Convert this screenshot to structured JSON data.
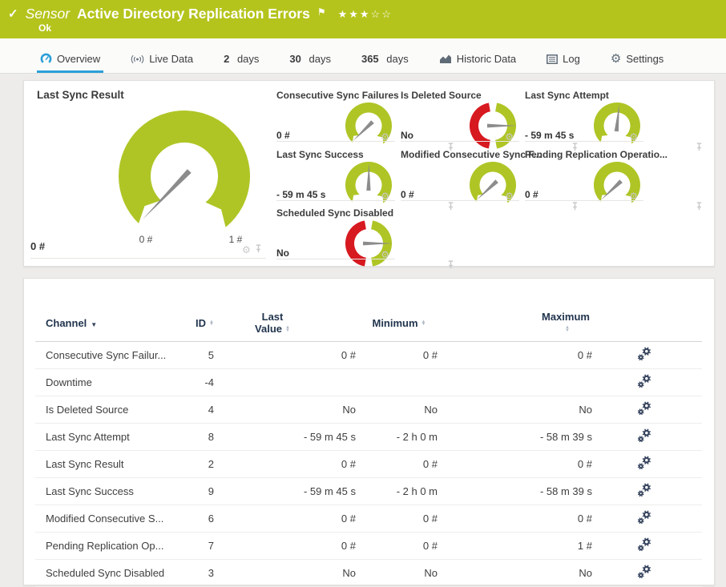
{
  "header": {
    "check_icon": "✓",
    "kind_label": "Sensor",
    "title": "Active Directory Replication Errors",
    "flag_icon": "⚑",
    "rating_filled": 3,
    "rating_total": 5,
    "status_text": "Ok",
    "bg_color": "#b5c41c"
  },
  "tabs": [
    {
      "label": "Overview",
      "icon": "gauge-icon",
      "active": true
    },
    {
      "label": "Live Data",
      "icon": "live-icon",
      "active": false
    },
    {
      "prefix": "2",
      "label": "days",
      "active": false
    },
    {
      "prefix": "30",
      "label": "days",
      "active": false
    },
    {
      "prefix": "365",
      "label": "days",
      "active": false
    },
    {
      "label": "Historic Data",
      "icon": "historic-icon",
      "active": false
    },
    {
      "label": "Log",
      "icon": "log-icon",
      "active": false
    },
    {
      "label": "Settings",
      "icon": "settings-icon",
      "active": false
    }
  ],
  "colors": {
    "green": "#afc525",
    "red": "#d71920",
    "blue": "#2b9fd8",
    "needle": "#8c8c8c",
    "row_gear": "#33415c"
  },
  "gauges": {
    "main": {
      "title": "Last Sync Result",
      "type": "arc",
      "value": "0 #",
      "min_label": "0 #",
      "max_label": "1 #",
      "needle_angle": 134
    },
    "small": [
      {
        "title": "Consecutive Sync Failures",
        "type": "arc",
        "value": "0 #",
        "needle_angle": 136,
        "col": 0,
        "row": 0
      },
      {
        "title": "Is Deleted Source",
        "type": "bool",
        "value": "No",
        "needle_angle": 0,
        "col": 1,
        "row": 0
      },
      {
        "title": "Last Sync Attempt",
        "type": "arc",
        "value": "- 59 m 45 s",
        "needle_angle": 276,
        "col": 2,
        "row": 0
      },
      {
        "title": "Last Sync Success",
        "type": "arc",
        "value": "- 59 m 45 s",
        "needle_angle": 271,
        "col": 0,
        "row": 1
      },
      {
        "title": "Modified Consecutive Sync F...",
        "type": "arc",
        "value": "0 #",
        "needle_angle": 137,
        "col": 1,
        "row": 1
      },
      {
        "title": "Pending Replication Operatio...",
        "type": "arc",
        "value": "0 #",
        "needle_angle": 137,
        "col": 2,
        "row": 1
      },
      {
        "title": "Scheduled Sync Disabled",
        "type": "bool",
        "value": "No",
        "needle_angle": 0,
        "col": 0,
        "row": 2
      }
    ]
  },
  "table": {
    "columns": [
      {
        "label": "Channel",
        "sort": "active"
      },
      {
        "label": "ID",
        "sort": "both"
      },
      {
        "label": "Last Value",
        "lines": [
          "Last",
          "Value"
        ],
        "sort": "both"
      },
      {
        "label": "Minimum",
        "sort": "both"
      },
      {
        "label": "Maximum",
        "sort": "both"
      },
      {
        "label": "",
        "sort": "none"
      }
    ],
    "rows": [
      {
        "channel": "Consecutive Sync Failur...",
        "id": "5",
        "last": "0 #",
        "min": "0 #",
        "max": "0 #"
      },
      {
        "channel": "Downtime",
        "id": "-4",
        "last": "",
        "min": "",
        "max": ""
      },
      {
        "channel": "Is Deleted Source",
        "id": "4",
        "last": "No",
        "min": "No",
        "max": "No"
      },
      {
        "channel": "Last Sync Attempt",
        "id": "8",
        "last": "- 59 m 45 s",
        "min": "- 2 h 0 m",
        "max": "- 58 m 39 s"
      },
      {
        "channel": "Last Sync Result",
        "id": "2",
        "last": "0 #",
        "min": "0 #",
        "max": "0 #"
      },
      {
        "channel": "Last Sync Success",
        "id": "9",
        "last": "- 59 m 45 s",
        "min": "- 2 h 0 m",
        "max": "- 58 m 39 s"
      },
      {
        "channel": "Modified Consecutive S...",
        "id": "6",
        "last": "0 #",
        "min": "0 #",
        "max": "0 #"
      },
      {
        "channel": "Pending Replication Op...",
        "id": "7",
        "last": "0 #",
        "min": "0 #",
        "max": "1 #"
      },
      {
        "channel": "Scheduled Sync Disabled",
        "id": "3",
        "last": "No",
        "min": "No",
        "max": "No"
      }
    ]
  }
}
